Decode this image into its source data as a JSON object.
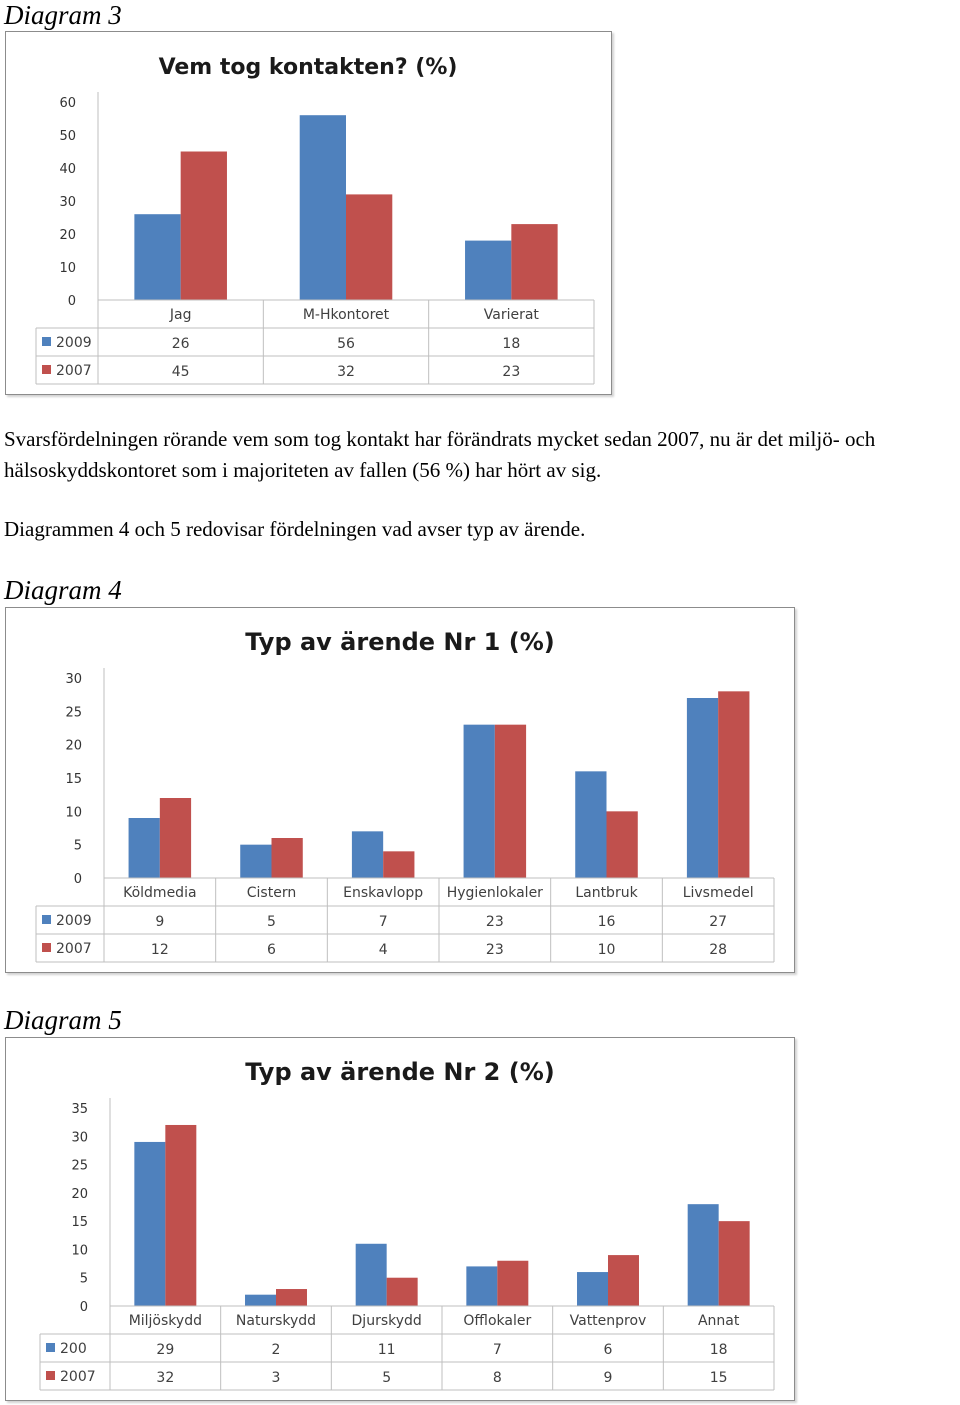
{
  "headings": {
    "d3": "Diagram 3",
    "d4": "Diagram 4",
    "d5": "Diagram 5"
  },
  "paragraphs": {
    "p1": "Svarsfördelningen rörande vem som tog kontakt har förändrats mycket sedan 2007, nu är det miljö- och hälsoskyddskontoret som i majoriteten av fallen (56 %) har hört av sig.",
    "p2": "Diagrammen 4 och 5 redovisar fördelningen vad avser typ av ärende."
  },
  "colors": {
    "series_2009": "#4f81bd",
    "series_2007": "#c0504d",
    "grid": "#bfbfbf"
  },
  "chart_data": [
    {
      "type": "bar",
      "title": "Vem tog kontakten? (%)",
      "categories": [
        "Jag",
        "M-Hkontoret",
        "Varierat"
      ],
      "series": [
        {
          "name": "2009",
          "values": [
            26,
            56,
            18
          ]
        },
        {
          "name": "2007",
          "values": [
            45,
            32,
            23
          ]
        }
      ],
      "yticks": [
        0,
        10,
        20,
        30,
        40,
        50,
        60
      ],
      "ylim": [
        0,
        60
      ],
      "data_table": true,
      "grid": false
    },
    {
      "type": "bar",
      "title": "Typ av ärende Nr 1 (%)",
      "categories": [
        "Köldmedia",
        "Cistern",
        "Enskavlopp",
        "Hygienlokaler",
        "Lantbruk",
        "Livsmedel"
      ],
      "series": [
        {
          "name": "2009",
          "values": [
            9,
            5,
            7,
            23,
            16,
            27
          ]
        },
        {
          "name": "2007",
          "values": [
            12,
            6,
            4,
            23,
            10,
            28
          ]
        }
      ],
      "yticks": [
        0,
        5,
        10,
        15,
        20,
        25,
        30
      ],
      "ylim": [
        0,
        30
      ],
      "data_table": true,
      "grid": false
    },
    {
      "type": "bar",
      "title": "Typ av ärende Nr 2 (%)",
      "categories": [
        "Miljöskydd",
        "Naturskydd",
        "Djurskydd",
        "Offlokaler",
        "Vattenprov",
        "Annat"
      ],
      "series": [
        {
          "name": "200",
          "values": [
            29,
            2,
            11,
            7,
            6,
            18
          ]
        },
        {
          "name": "2007",
          "values": [
            32,
            3,
            5,
            8,
            9,
            15
          ]
        }
      ],
      "yticks": [
        0,
        5,
        10,
        15,
        20,
        25,
        30,
        35
      ],
      "ylim": [
        0,
        35
      ],
      "data_table": true,
      "grid": false
    }
  ]
}
